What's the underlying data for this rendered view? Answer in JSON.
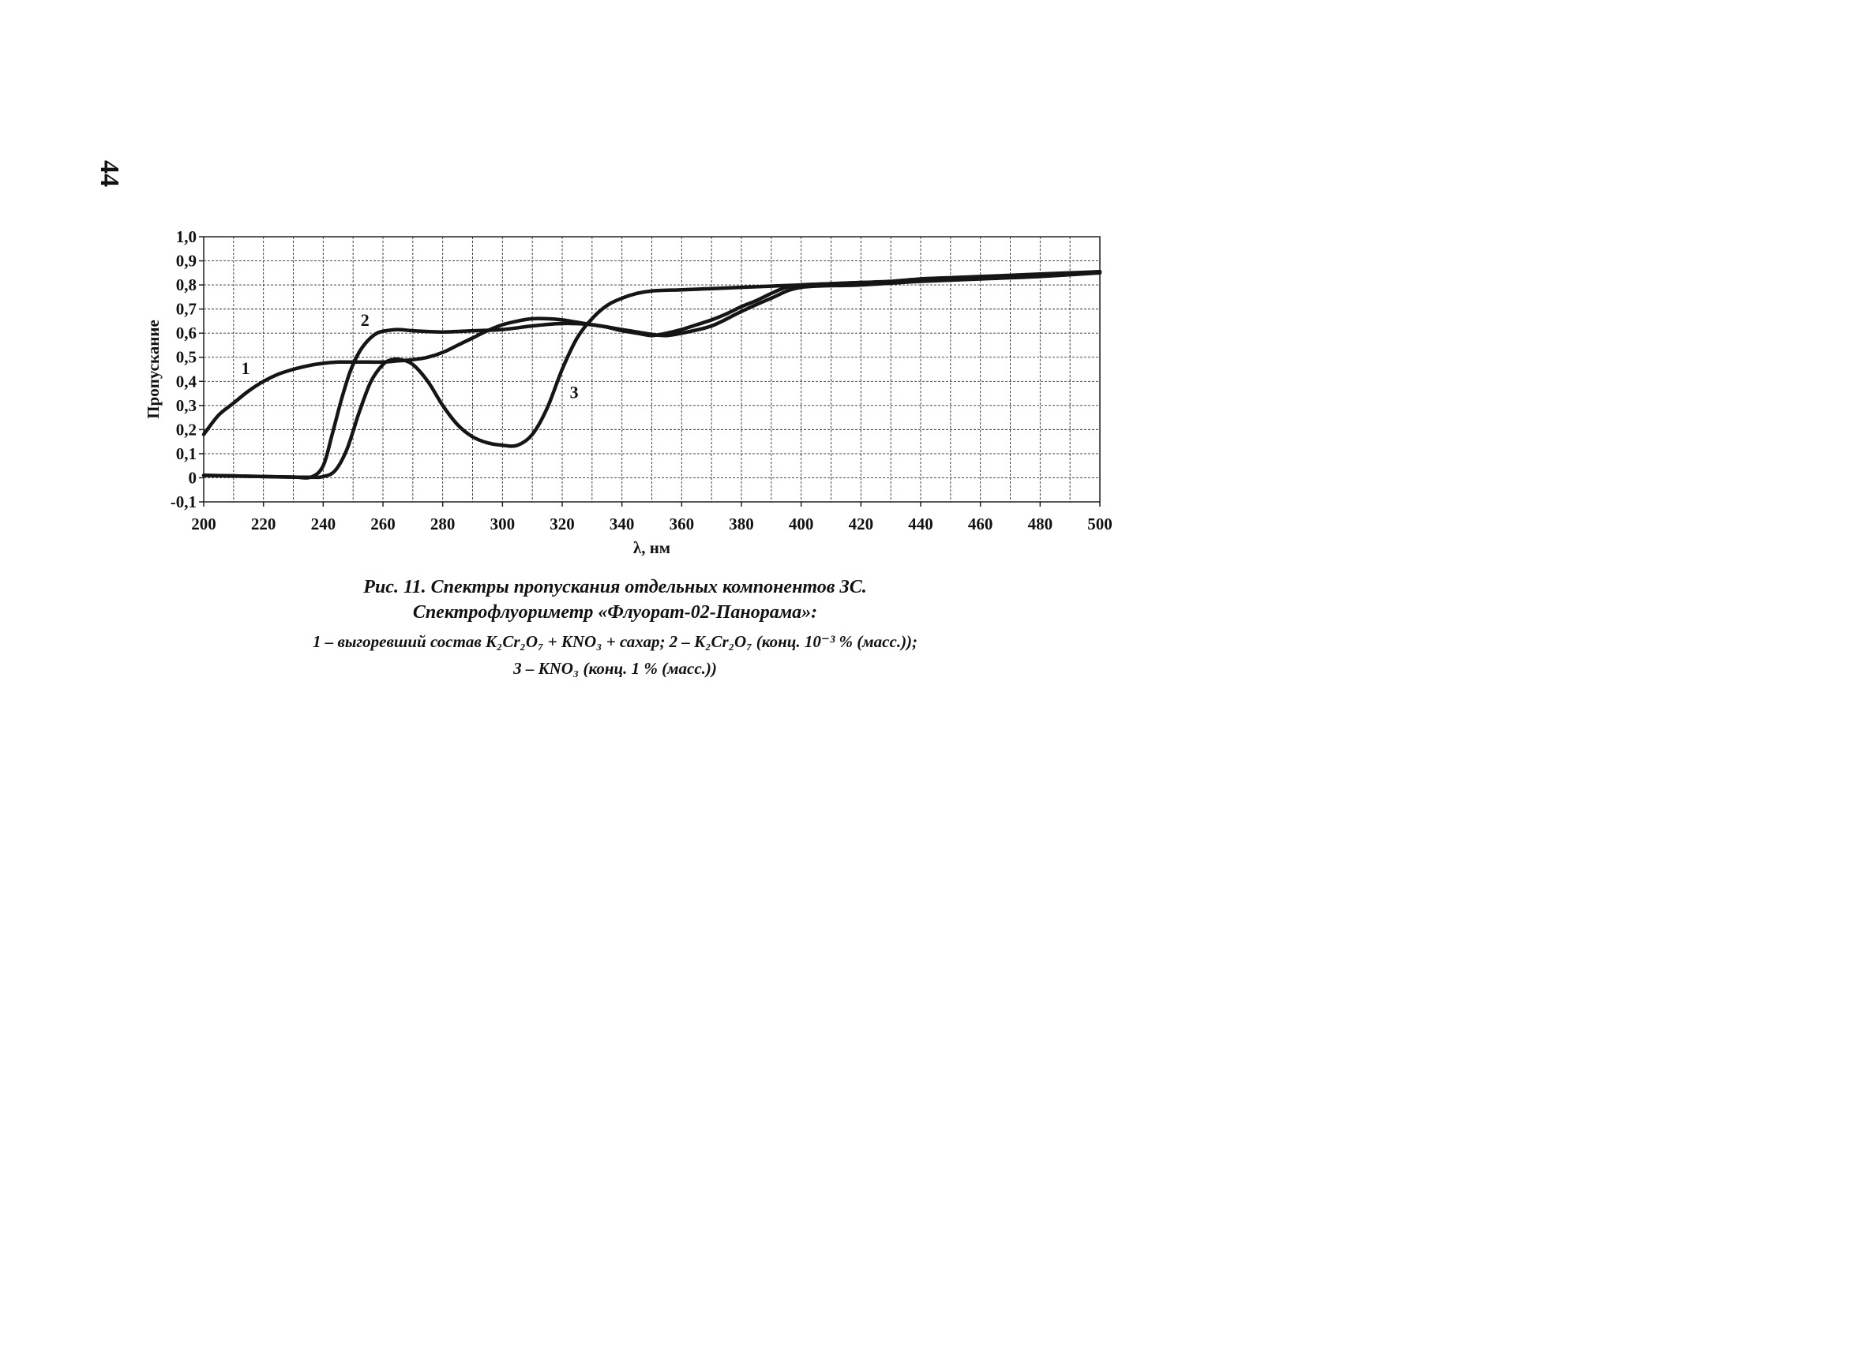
{
  "page": {
    "number": "44"
  },
  "chart_data": {
    "type": "line",
    "xlabel": "λ, нм",
    "ylabel": "Пропускание",
    "xlim": [
      200,
      500
    ],
    "ylim": [
      -0.1,
      1.0
    ],
    "x_ticks": [
      "200",
      "220",
      "240",
      "260",
      "280",
      "300",
      "320",
      "340",
      "360",
      "380",
      "400",
      "420",
      "440",
      "460",
      "480",
      "500"
    ],
    "y_ticks": [
      "1,0",
      "0,9",
      "0,8",
      "0,7",
      "0,6",
      "0,5",
      "0,4",
      "0,3",
      "0,2",
      "0,1",
      "0",
      "-0,1"
    ],
    "grid": true,
    "series": [
      {
        "name": "1",
        "x": [
          200,
          205,
          210,
          215,
          220,
          225,
          230,
          235,
          240,
          245,
          250,
          255,
          260,
          265,
          270,
          275,
          280,
          285,
          290,
          295,
          300,
          305,
          310,
          315,
          320,
          325,
          330,
          335,
          340,
          345,
          350,
          355,
          360,
          365,
          370,
          375,
          380,
          385,
          390,
          395,
          400,
          410,
          420,
          430,
          440,
          450,
          460,
          470,
          480,
          490,
          500
        ],
        "y": [
          0.18,
          0.26,
          0.31,
          0.36,
          0.4,
          0.43,
          0.45,
          0.465,
          0.475,
          0.48,
          0.48,
          0.48,
          0.48,
          0.485,
          0.49,
          0.5,
          0.52,
          0.55,
          0.58,
          0.61,
          0.635,
          0.65,
          0.66,
          0.66,
          0.655,
          0.645,
          0.635,
          0.625,
          0.61,
          0.6,
          0.59,
          0.6,
          0.615,
          0.635,
          0.655,
          0.68,
          0.71,
          0.735,
          0.765,
          0.79,
          0.8,
          0.805,
          0.81,
          0.815,
          0.825,
          0.83,
          0.835,
          0.84,
          0.845,
          0.85,
          0.855
        ]
      },
      {
        "name": "2",
        "x": [
          200,
          210,
          220,
          230,
          236,
          240,
          243,
          246,
          249,
          252,
          255,
          258,
          261,
          265,
          270,
          280,
          290,
          300,
          310,
          320,
          330,
          340,
          350,
          355,
          360,
          370,
          380,
          390,
          400,
          420,
          440,
          460,
          480,
          500
        ],
        "y": [
          0.01,
          0.008,
          0.005,
          0.003,
          0.003,
          0.05,
          0.18,
          0.32,
          0.44,
          0.52,
          0.57,
          0.6,
          0.61,
          0.615,
          0.61,
          0.605,
          0.61,
          0.615,
          0.63,
          0.64,
          0.635,
          0.615,
          0.595,
          0.59,
          0.6,
          0.63,
          0.69,
          0.745,
          0.79,
          0.8,
          0.815,
          0.83,
          0.84,
          0.855
        ]
      },
      {
        "name": "3",
        "x": [
          200,
          220,
          235,
          240,
          244,
          248,
          252,
          256,
          260,
          263,
          266,
          270,
          275,
          280,
          285,
          290,
          295,
          300,
          305,
          310,
          315,
          320,
          325,
          330,
          335,
          340,
          345,
          350,
          360,
          370,
          380,
          390,
          400,
          420,
          440,
          460,
          480,
          500
        ],
        "y": [
          0.01,
          0.005,
          0.002,
          0.005,
          0.03,
          0.12,
          0.27,
          0.4,
          0.47,
          0.49,
          0.49,
          0.47,
          0.4,
          0.3,
          0.22,
          0.17,
          0.145,
          0.135,
          0.135,
          0.18,
          0.29,
          0.45,
          0.58,
          0.66,
          0.715,
          0.745,
          0.765,
          0.775,
          0.78,
          0.785,
          0.79,
          0.795,
          0.8,
          0.81,
          0.815,
          0.825,
          0.835,
          0.85
        ]
      }
    ],
    "annotations": [
      {
        "text": "1",
        "x": 214,
        "y": 0.43
      },
      {
        "text": "2",
        "x": 254,
        "y": 0.63
      },
      {
        "text": "3",
        "x": 324,
        "y": 0.33
      }
    ]
  },
  "caption": {
    "title_line1": "Рис. 11. Спектры пропускания отдельных компонентов ЗС.",
    "title_line2": "Спектрофлуориметр «Флуорат-02-Панорама»:",
    "desc_line1": "1 – выгоревший состав K₂Cr₂O₇ + KNO₃ + сахар; 2 – K₂Cr₂O₇ (конц. 10⁻³ % (масс.));",
    "desc_line2": "3 – KNO₃ (конц. 1 % (масс.))"
  }
}
